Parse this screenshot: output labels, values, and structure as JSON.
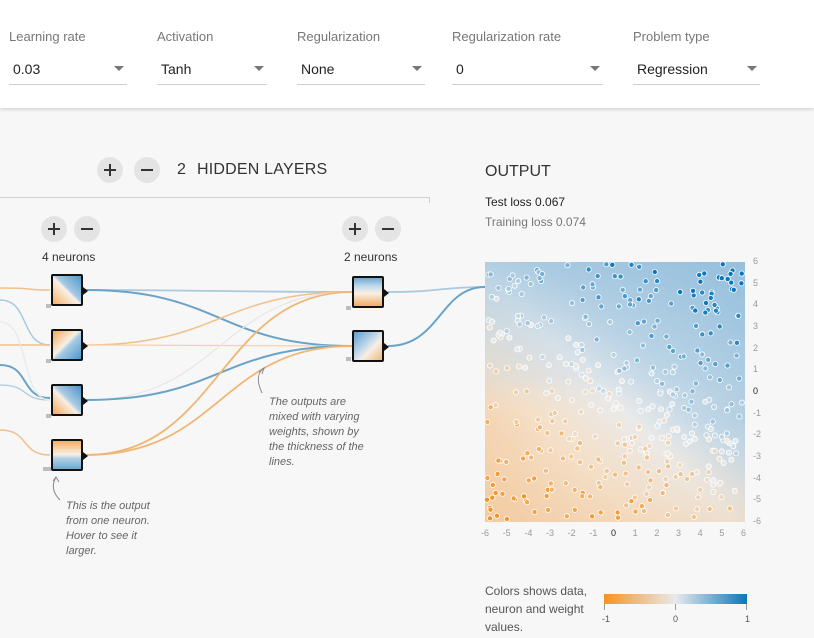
{
  "controls": {
    "learning_rate": {
      "label": "Learning rate",
      "value": "0.03"
    },
    "activation": {
      "label": "Activation",
      "value": "Tanh"
    },
    "regularization": {
      "label": "Regularization",
      "value": "None"
    },
    "regularization_rate": {
      "label": "Regularization rate",
      "value": "0"
    },
    "problem_type": {
      "label": "Problem type",
      "value": "Regression"
    }
  },
  "network": {
    "hidden_layer_count": "2",
    "hidden_layers_label": "HIDDEN LAYERS",
    "layers": [
      {
        "neurons_label": "4 neurons",
        "neuron_count": 4
      },
      {
        "neurons_label": "2 neurons",
        "neuron_count": 2
      }
    ],
    "annotation_neuron": "This is the output from one neuron. Hover to see it larger.",
    "annotation_weights": "The outputs are mixed with varying weights, shown by the thickness of the lines."
  },
  "output": {
    "title": "OUTPUT",
    "test_loss": "Test loss 0.067",
    "training_loss": "Training loss 0.074",
    "x_ticks": [
      "-6",
      "-5",
      "-4",
      "-3",
      "-2",
      "-1",
      "0",
      "1",
      "2",
      "3",
      "4",
      "5",
      "6"
    ],
    "y_ticks": [
      "6",
      "5",
      "4",
      "3",
      "2",
      "1",
      "0",
      "-1",
      "-2",
      "-3",
      "-4",
      "-5",
      "-6"
    ],
    "xlim": [
      -6,
      6
    ],
    "ylim": [
      -6,
      6
    ]
  },
  "legend": {
    "text": "Colors shows data, neuron and weight values.",
    "min_label": "-1",
    "mid_label": "0",
    "max_label": "1"
  },
  "colors": {
    "orange": "#f59322",
    "light": "#e8eaeb",
    "blue": "#0877bd"
  }
}
